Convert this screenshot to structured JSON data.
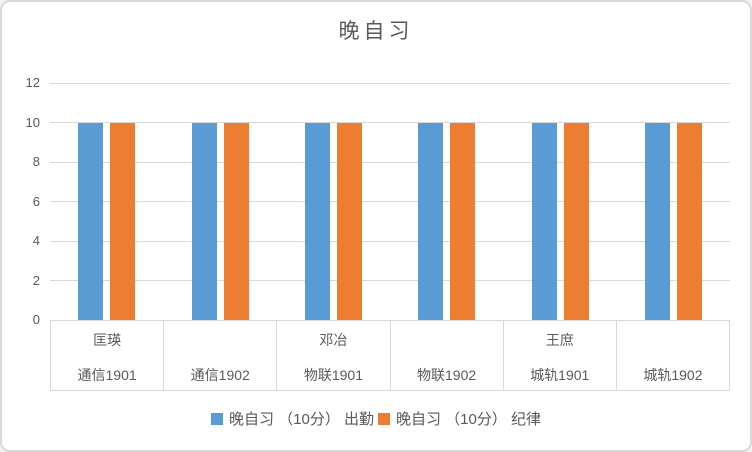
{
  "chart_data": {
    "type": "bar",
    "title": "晚自习",
    "categories": [
      "通信1901",
      "通信1902",
      "物联1901",
      "物联1902",
      "城轨1901",
      "城轨1902"
    ],
    "category_groups": [
      "匡瑛",
      "",
      "邓冶",
      "",
      "王庶",
      ""
    ],
    "series": [
      {
        "name": "晚自习 （10分） 出勤",
        "color": "#5B9BD5",
        "values": [
          10,
          10,
          10,
          10,
          10,
          10
        ]
      },
      {
        "name": "晚自习 （10分） 纪律",
        "color": "#ED7D31",
        "values": [
          10,
          10,
          10,
          10,
          10,
          10
        ]
      }
    ],
    "xlabel": "",
    "ylabel": "",
    "ylim": [
      0,
      12
    ],
    "yticks": [
      0,
      2,
      4,
      6,
      8,
      10,
      12
    ],
    "grid": true,
    "legend_position": "bottom"
  },
  "colors": {
    "grid": "#D9D9D9",
    "axis_text": "#595959",
    "title_text": "#595959",
    "chart_border": "#D9D9D9",
    "background": "#FFFFFF"
  }
}
